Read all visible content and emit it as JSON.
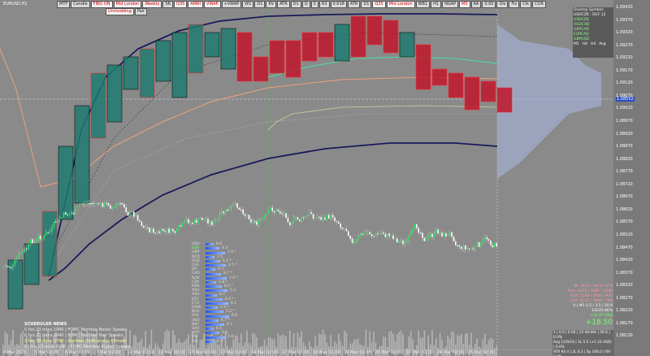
{
  "toolbar": {
    "buttons": [
      "MTF",
      "Candle",
      "FIBO ON",
      "Mid London",
      "Weekly",
      "SR",
      "Q35",
      "AMRI",
      "VWAP",
      "+VWAP",
      "W1",
      "D1",
      "KV",
      "ATR",
      "D1",
      "Q",
      "S",
      "R3",
      "0.618",
      "ATR",
      "D1",
      "Q35",
      "Mid London",
      "WB1",
      "H1",
      "NGAP",
      "M5",
      "RA",
      "0.00",
      "Ols",
      "Fix",
      "Clk",
      "COR"
    ],
    "sub": [
      "Unmodding",
      "Pair"
    ]
  },
  "symbol": "EURUSD,H1",
  "price_labels": [
    "1.09420",
    "1.09370",
    "1.09320",
    "1.09270",
    "1.09220",
    "1.09170",
    "1.09120",
    "1.09070",
    "1.09020",
    "1.08970",
    "1.08920",
    "1.08870",
    "1.08820",
    "1.08770",
    "1.08720",
    "1.08670",
    "1.08620",
    "1.08570",
    "1.08520",
    "1.08470",
    "1.08420",
    "1.08370",
    "1.08320",
    "1.08270",
    "1.08220",
    "1.08170",
    "1.08120"
  ],
  "current_price": "1.08552",
  "date_labels": [
    "4 Mar 2025",
    "5 Mar 02:00",
    "6 Mar 02:00",
    "7 Mar 02:00",
    "10 Mar 02:00",
    "11 Mar 02:00",
    "12 Mar 02:00",
    "13 Mar 02:00",
    "14 Mar 02:00",
    "17 Mar 02:00",
    "18 Mar 02:00",
    "19 Mar 02:00",
    "20 Mar 02:00",
    "21 Mar 02:00",
    "24 Mar 02:00",
    "25 Mar 02:00"
  ],
  "news": {
    "title": "SCHEDULED NEWS",
    "items": [
      "5 hrs 23 mins 1940 | FOMC Member Bostic Speaks",
      "6 hrs 23 mins 2040 | FOMC Member Barr Speaks",
      "3 hrs 38 mins 1740 | German Ifo Business Climate",
      "12 hrs 23 mins 0240 | FOMC Member Kugler Speaks"
    ]
  },
  "strength": [
    [
      "USD",
      "6.6"
    ],
    [
      "EUR",
      "4.3"
    ],
    [
      "GBP",
      "7.0 *"
    ],
    [
      "NZD",
      "3.5"
    ],
    [
      "AUD",
      "6.4 *"
    ],
    [
      "CHF",
      "4.5 *"
    ],
    [
      "JPY",
      "0.3"
    ],
    [
      "CAD",
      "8.7 *"
    ],
    [
      "NOK",
      "7.0 *"
    ],
    [
      "CZK",
      "5.8 *"
    ],
    [
      "PHN",
      "8.5 *"
    ],
    [
      "XAU",
      "5.3"
    ],
    [
      "XAG",
      "6.7"
    ],
    [
      "BTC",
      "6.0 *"
    ],
    [
      "ETH",
      "6.1"
    ],
    [
      "DOW",
      "5.9 *"
    ],
    [
      "NAS",
      "5.5 *"
    ],
    [
      "SPX",
      "6.6"
    ],
    [
      "UKO",
      "6.7 *"
    ],
    [
      "NKY",
      "6.2"
    ],
    [
      "DAX",
      "6.1"
    ],
    [
      "UKX",
      "6.0"
    ],
    [
      "HSI",
      "5.8"
    ],
    [
      "IGS",
      "6.3"
    ]
  ],
  "overlay": {
    "title": "Overlay Symbol: USDCZK : DCF 12",
    "rows": [
      "USDCZK",
      "AUDCAD",
      "GBPCAD",
      "EURCAD",
      "GBPUSD"
    ],
    "footer": [
      "M1",
      "H4",
      "H4",
      "Avg"
    ]
  },
  "stats": {
    "lines": [
      "W: 1612 / 1612 / 479",
      "Prev: 4015 / 3081 / 1480",
      "Part: 5109 / 3956 / 930",
      "Last: 6125 / 4600 / 780"
    ],
    "vline": "V | M1 5.5 / 3.5 / 20.9",
    "balance": "16535.86%",
    "pl1": "+14.67 USD",
    "pl2": "+18.50",
    "foot": [
      "1 | 0.0 | 0.00 | 15:46:08s | 56.6 | 0.0%",
      "Avg 11/9/16 | 1L 5.5 (+1.33 USD) | 0.0%",
      "ATR 94.4 | 2L 6.3 | Sp 106.0 | RH 0.00"
    ]
  }
}
